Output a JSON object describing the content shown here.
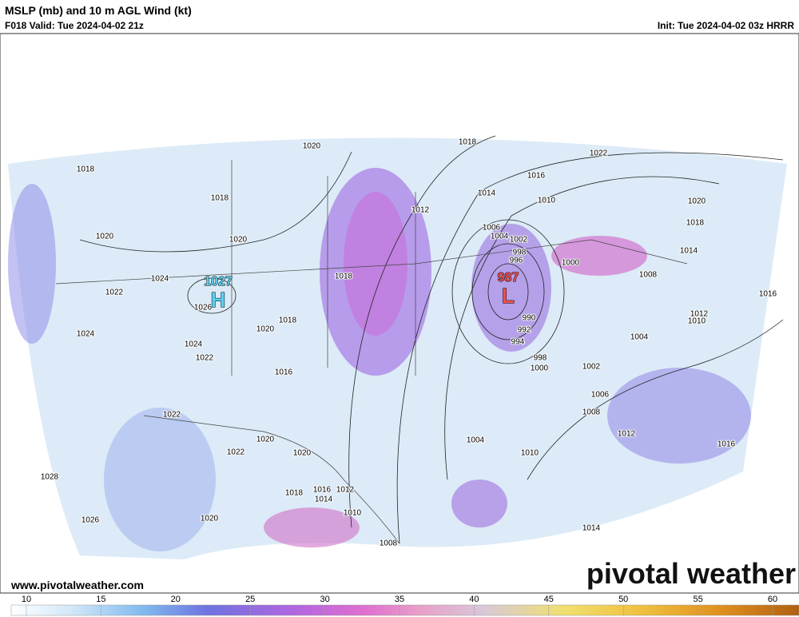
{
  "header": {
    "title": "MSLP (mb) and 10 m AGL Wind (kt)",
    "valid": "F018 Valid: Tue 2024-04-02 21z",
    "init": "Init: Tue 2024-04-02 03z HRRR"
  },
  "isobar_labels": [
    1020,
    1018,
    1018,
    1020,
    1020,
    1024,
    1022,
    1026,
    1024,
    1024,
    1022,
    1020,
    1018,
    1018,
    1016,
    1022,
    1020,
    1022,
    1020,
    1028,
    1018,
    1016,
    1012,
    1014,
    1010,
    1026,
    1020,
    1008,
    1018,
    1022,
    1016,
    1014,
    1012,
    1010,
    1020,
    1018,
    1006,
    1004,
    1002,
    998,
    996,
    1000,
    1014,
    1008,
    1016,
    1012,
    1010,
    990,
    992,
    994,
    998,
    1000,
    1002,
    1004,
    1006,
    1008,
    1012,
    1016,
    1004,
    1010,
    1014
  ],
  "highs": [
    {
      "pressure": 1027,
      "letter": "H"
    }
  ],
  "lows": [
    {
      "pressure": 987,
      "letter": "L"
    }
  ],
  "colorbar": {
    "ticks": [
      10,
      15,
      20,
      25,
      30,
      35,
      40,
      45,
      50,
      55,
      60
    ]
  },
  "footer": {
    "website": "www.pivotalweather.com",
    "logo": "pivotal weather"
  }
}
